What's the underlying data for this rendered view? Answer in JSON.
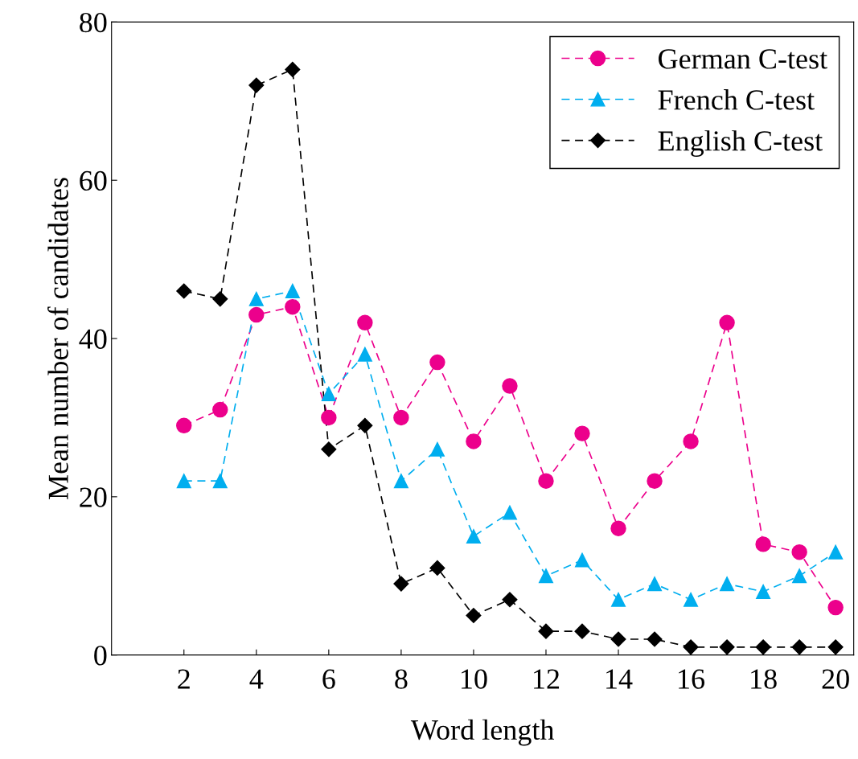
{
  "chart_data": {
    "type": "line",
    "xlabel": "Word length",
    "ylabel": "Mean number of candidates",
    "x": [
      2,
      3,
      4,
      5,
      6,
      7,
      8,
      9,
      10,
      11,
      12,
      13,
      14,
      15,
      16,
      17,
      18,
      19,
      20
    ],
    "series": [
      {
        "name": "German C-test",
        "color": "#ec008c",
        "marker": "circle",
        "values": [
          29,
          31,
          43,
          44,
          30,
          42,
          30,
          37,
          27,
          34,
          22,
          28,
          16,
          22,
          27,
          42,
          14,
          13,
          6
        ]
      },
      {
        "name": "French C-test",
        "color": "#00aeef",
        "marker": "triangle",
        "values": [
          22,
          22,
          45,
          46,
          33,
          38,
          22,
          26,
          15,
          18,
          10,
          12,
          7,
          9,
          7,
          9,
          8,
          10,
          13
        ]
      },
      {
        "name": "English C-test",
        "color": "#000000",
        "marker": "diamond",
        "values": [
          46,
          45,
          72,
          74,
          26,
          29,
          9,
          11,
          5,
          7,
          3,
          3,
          2,
          2,
          1,
          1,
          1,
          1,
          1
        ]
      }
    ],
    "line_style": "dashed",
    "grid": false,
    "legend": "top right",
    "xlim": [
      0,
      20.5
    ],
    "xticks": [
      2,
      4,
      6,
      8,
      10,
      12,
      14,
      16,
      18,
      20
    ],
    "ylim": [
      0,
      80
    ],
    "yticks": [
      0,
      20,
      40,
      60,
      80
    ]
  }
}
